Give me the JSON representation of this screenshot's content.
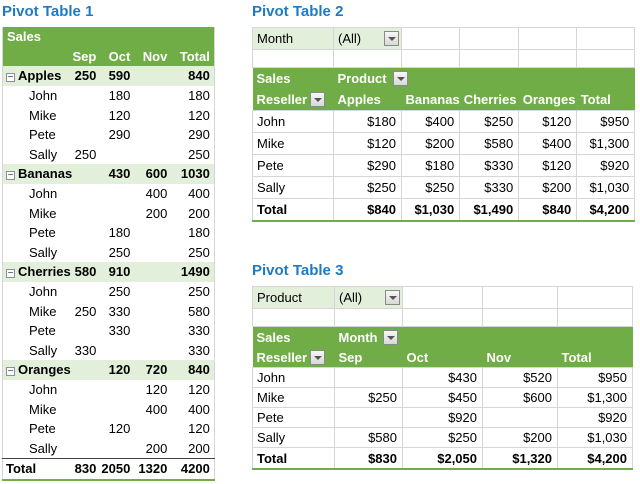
{
  "colors": {
    "header_green": "#70AD47",
    "band_green": "#E2EFDA",
    "title_blue": "#1E7BC3",
    "border_gray": "#D6D6D6"
  },
  "icons": {
    "collapse_minus": "−",
    "dropdown_arrow": "▼"
  },
  "table1": {
    "title": "Pivot Table 1",
    "corner_label": "Sales",
    "col_headers": [
      "Sep",
      "Oct",
      "Nov",
      "Total"
    ],
    "rows": [
      {
        "label": "Apples",
        "group": true,
        "cells": [
          "250",
          "590",
          "",
          "840"
        ]
      },
      {
        "label": "John",
        "group": false,
        "cells": [
          "",
          "180",
          "",
          "180"
        ]
      },
      {
        "label": "Mike",
        "group": false,
        "cells": [
          "",
          "120",
          "",
          "120"
        ]
      },
      {
        "label": "Pete",
        "group": false,
        "cells": [
          "",
          "290",
          "",
          "290"
        ]
      },
      {
        "label": "Sally",
        "group": false,
        "cells": [
          "250",
          "",
          "",
          "250"
        ]
      },
      {
        "label": "Bananas",
        "group": true,
        "cells": [
          "",
          "430",
          "600",
          "1030"
        ]
      },
      {
        "label": "John",
        "group": false,
        "cells": [
          "",
          "",
          "400",
          "400"
        ]
      },
      {
        "label": "Mike",
        "group": false,
        "cells": [
          "",
          "",
          "200",
          "200"
        ]
      },
      {
        "label": "Pete",
        "group": false,
        "cells": [
          "",
          "180",
          "",
          "180"
        ]
      },
      {
        "label": "Sally",
        "group": false,
        "cells": [
          "",
          "250",
          "",
          "250"
        ]
      },
      {
        "label": "Cherries",
        "group": true,
        "cells": [
          "580",
          "910",
          "",
          "1490"
        ]
      },
      {
        "label": "John",
        "group": false,
        "cells": [
          "",
          "250",
          "",
          "250"
        ]
      },
      {
        "label": "Mike",
        "group": false,
        "cells": [
          "250",
          "330",
          "",
          "580"
        ]
      },
      {
        "label": "Pete",
        "group": false,
        "cells": [
          "",
          "330",
          "",
          "330"
        ]
      },
      {
        "label": "Sally",
        "group": false,
        "cells": [
          "330",
          "",
          "",
          "330"
        ]
      },
      {
        "label": "Oranges",
        "group": true,
        "cells": [
          "",
          "120",
          "720",
          "840"
        ]
      },
      {
        "label": "John",
        "group": false,
        "cells": [
          "",
          "",
          "120",
          "120"
        ]
      },
      {
        "label": "Mike",
        "group": false,
        "cells": [
          "",
          "",
          "400",
          "400"
        ]
      },
      {
        "label": "Pete",
        "group": false,
        "cells": [
          "",
          "120",
          "",
          "120"
        ]
      },
      {
        "label": "Sally",
        "group": false,
        "cells": [
          "",
          "",
          "200",
          "200"
        ]
      }
    ],
    "total": {
      "label": "Total",
      "cells": [
        "830",
        "2050",
        "1320",
        "4200"
      ]
    }
  },
  "table2": {
    "title": "Pivot Table 2",
    "filter": {
      "label": "Month",
      "value": "(All)"
    },
    "row_area_label": "Sales",
    "col_field_label": "Product",
    "row_field_label": "Reseller",
    "col_headers": [
      "Apples",
      "Bananas",
      "Cherries",
      "Oranges",
      "Total"
    ],
    "rows": [
      {
        "label": "John",
        "cells": [
          "$180",
          "$400",
          "$250",
          "$120",
          "$950"
        ]
      },
      {
        "label": "Mike",
        "cells": [
          "$120",
          "$200",
          "$580",
          "$400",
          "$1,300"
        ]
      },
      {
        "label": "Pete",
        "cells": [
          "$290",
          "$180",
          "$330",
          "$120",
          "$920"
        ]
      },
      {
        "label": "Sally",
        "cells": [
          "$250",
          "$250",
          "$330",
          "$200",
          "$1,030"
        ]
      }
    ],
    "total": {
      "label": "Total",
      "cells": [
        "$840",
        "$1,030",
        "$1,490",
        "$840",
        "$4,200"
      ]
    }
  },
  "table3": {
    "title": "Pivot Table 3",
    "filter": {
      "label": "Product",
      "value": "(All)"
    },
    "row_area_label": "Sales",
    "col_field_label": "Month",
    "row_field_label": "Reseller",
    "col_headers": [
      "Sep",
      "Oct",
      "Nov",
      "Total"
    ],
    "rows": [
      {
        "label": "John",
        "cells": [
          "",
          "$430",
          "$520",
          "$950"
        ]
      },
      {
        "label": "Mike",
        "cells": [
          "$250",
          "$450",
          "$600",
          "$1,300"
        ]
      },
      {
        "label": "Pete",
        "cells": [
          "",
          "$920",
          "",
          "$920"
        ]
      },
      {
        "label": "Sally",
        "cells": [
          "$580",
          "$250",
          "$200",
          "$1,030"
        ]
      }
    ],
    "total": {
      "label": "Total",
      "cells": [
        "$830",
        "$2,050",
        "$1,320",
        "$4,200"
      ]
    }
  }
}
